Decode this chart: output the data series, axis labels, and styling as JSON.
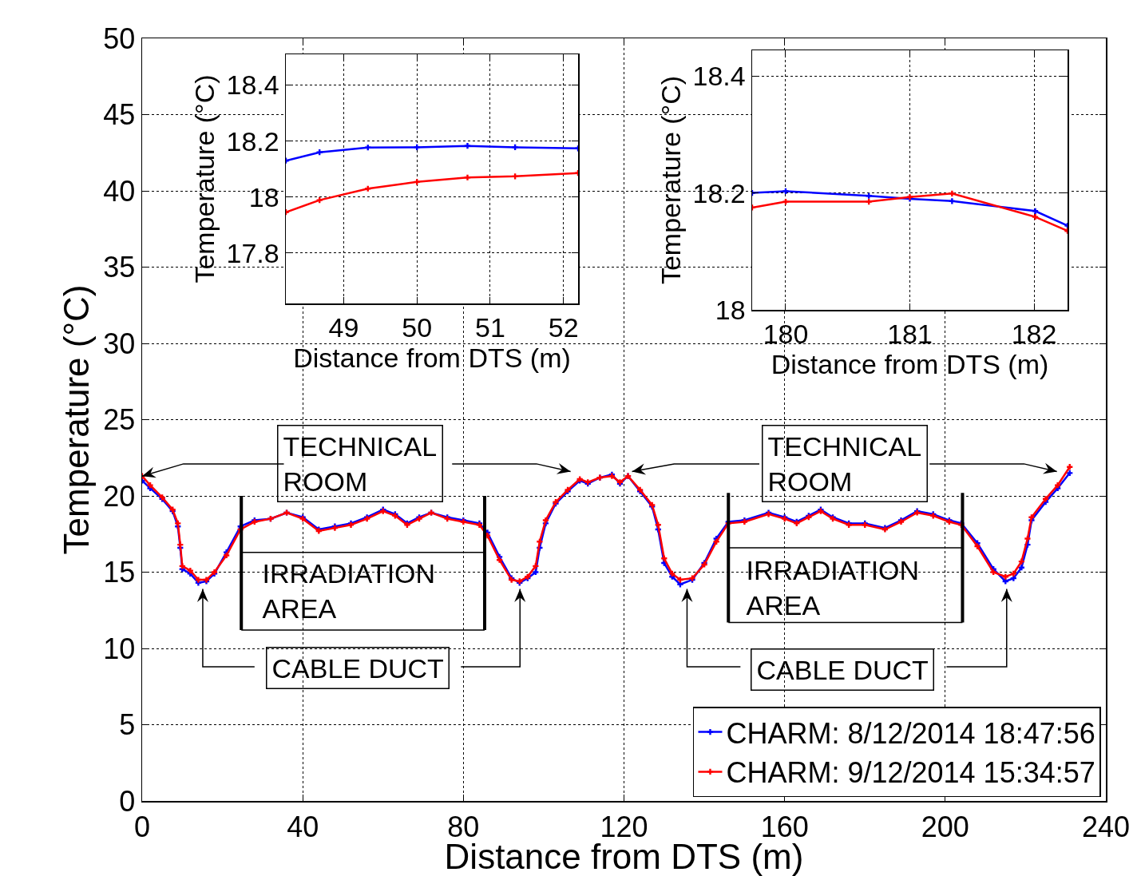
{
  "chart_data": [
    {
      "type": "line",
      "xlabel": "Distance from DTS (m)",
      "ylabel": "Temperature (°C)",
      "xlim": [
        0,
        240
      ],
      "xticks": [
        0,
        40,
        80,
        120,
        160,
        200,
        240
      ],
      "ylim": [
        0,
        50
      ],
      "yticks": [
        0,
        5,
        10,
        15,
        20,
        25,
        30,
        35,
        40,
        45,
        50
      ],
      "grid": true,
      "legend": "bottom right",
      "marker": "cross",
      "line_style": "solid",
      "x": [
        0,
        2,
        5,
        7.6,
        8.9,
        9.5,
        10,
        12,
        14,
        16,
        18,
        21,
        24.5,
        28,
        32,
        36,
        40,
        44,
        48,
        52,
        56,
        60,
        63,
        66,
        69,
        72,
        76,
        80,
        84,
        86,
        89,
        92,
        94,
        96,
        98,
        99,
        100.5,
        103,
        106,
        109,
        111,
        114,
        117,
        119,
        121,
        124,
        127,
        128.5,
        130,
        132,
        134,
        137,
        140,
        143,
        146,
        150,
        156,
        160,
        163,
        166,
        169,
        172,
        176,
        180,
        185,
        189,
        193,
        197,
        201,
        204,
        208,
        212,
        215,
        217,
        219,
        220.5,
        221.5,
        225,
        228,
        231
      ],
      "series": [
        {
          "name": "CHARM: 8/12/2014 18:47:56",
          "color": "#0000ff",
          "values": [
            21.0,
            20.5,
            19.8,
            19.0,
            18.0,
            16.6,
            15.2,
            14.9,
            14.3,
            14.4,
            14.9,
            16.3,
            18.0,
            18.4,
            18.5,
            18.9,
            18.6,
            17.8,
            18.0,
            18.2,
            18.6,
            19.1,
            18.8,
            18.2,
            18.6,
            18.9,
            18.6,
            18.4,
            18.2,
            17.6,
            16.0,
            14.6,
            14.3,
            14.6,
            15.0,
            16.6,
            18.2,
            19.5,
            20.3,
            21.0,
            20.8,
            21.2,
            21.4,
            20.8,
            21.3,
            20.3,
            19.3,
            17.8,
            15.6,
            14.7,
            14.2,
            14.5,
            15.6,
            17.2,
            18.3,
            18.4,
            18.9,
            18.6,
            18.3,
            18.7,
            19.1,
            18.6,
            18.2,
            18.2,
            17.9,
            18.4,
            19.0,
            18.8,
            18.4,
            18.2,
            16.9,
            15.2,
            14.4,
            14.6,
            15.3,
            16.8,
            18.4,
            19.6,
            20.5,
            21.5
          ]
        },
        {
          "name": "CHARM: 9/12/2014 15:34:57",
          "color": "#ff0000",
          "values": [
            21.3,
            20.7,
            19.9,
            19.1,
            18.2,
            16.8,
            15.4,
            15.1,
            14.5,
            14.5,
            15.0,
            16.1,
            17.8,
            18.3,
            18.5,
            18.9,
            18.5,
            17.7,
            17.9,
            18.1,
            18.5,
            19.0,
            18.7,
            18.1,
            18.5,
            18.9,
            18.5,
            18.3,
            18.1,
            17.4,
            15.8,
            14.5,
            14.4,
            14.7,
            15.4,
            17.0,
            18.4,
            19.6,
            20.4,
            21.1,
            20.9,
            21.2,
            21.3,
            20.9,
            21.3,
            20.4,
            19.4,
            18.1,
            15.9,
            14.9,
            14.5,
            14.6,
            15.5,
            17.0,
            18.2,
            18.3,
            18.8,
            18.5,
            18.2,
            18.6,
            19.0,
            18.5,
            18.1,
            18.1,
            17.8,
            18.3,
            18.9,
            18.7,
            18.3,
            18.1,
            16.7,
            15.0,
            14.7,
            14.9,
            15.7,
            17.2,
            18.6,
            19.8,
            20.7,
            21.9
          ]
        }
      ],
      "annotations": [
        {
          "text": "TECHNICAL\nROOM",
          "x": 0,
          "y": 21.3
        },
        "TECHNICAL\nROOM",
        "IRRADIATION\nAREA",
        "IRRADIATION\nAREA",
        "CABLE DUCT",
        "CABLE DUCT"
      ]
    },
    {
      "type": "line",
      "xlabel": "Distance from DTS (m)",
      "ylabel": "Temperature (°C)",
      "xlim": [
        48.21,
        52.2
      ],
      "xticks": [
        49,
        50,
        51,
        52
      ],
      "ylim": [
        17.62,
        18.51
      ],
      "yticks": [
        17.8,
        18,
        18.2,
        18.4
      ],
      "grid": true,
      "marker": "cross",
      "line_style": "solid",
      "x": [
        48.21,
        48.67,
        49.33,
        50.0,
        50.69,
        51.34,
        52.2
      ],
      "series": [
        {
          "color": "#0000ff",
          "values": [
            18.13,
            18.16,
            18.177,
            18.178,
            18.183,
            18.178,
            18.174
          ]
        },
        {
          "color": "#ff0000",
          "values": [
            17.946,
            17.989,
            18.03,
            18.054,
            18.07,
            18.074,
            18.086
          ]
        }
      ]
    },
    {
      "type": "line",
      "xlabel": "Distance from DTS (m)",
      "ylabel": "Temperature (°C)",
      "xlim": [
        179.73,
        182.27
      ],
      "xticks": [
        180,
        181,
        182
      ],
      "ylim": [
        18,
        18.444
      ],
      "yticks": [
        18,
        18.2,
        18.4
      ],
      "grid": true,
      "marker": "cross",
      "line_style": "solid",
      "x": [
        179.73,
        180.0,
        180.67,
        181.0,
        181.34,
        182.01,
        182.27
      ],
      "series": [
        {
          "color": "#0000ff",
          "values": [
            18.2,
            18.203,
            18.195,
            18.19,
            18.186,
            18.169,
            18.144
          ]
        },
        {
          "color": "#ff0000",
          "values": [
            18.175,
            18.185,
            18.185,
            18.193,
            18.199,
            18.159,
            18.135
          ]
        }
      ]
    }
  ]
}
